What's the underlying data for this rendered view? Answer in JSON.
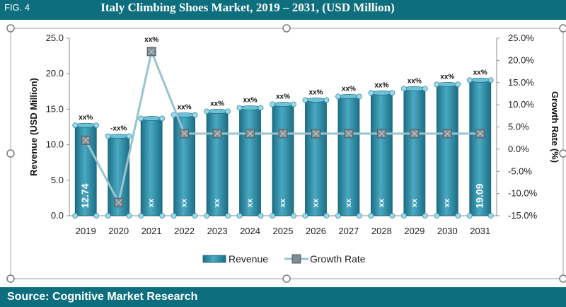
{
  "header": {
    "fig_label": "FIG. 4",
    "title": "Italy Climbing Shoes Market, 2019 – 2031, (USD Million)"
  },
  "footer": {
    "source": "Source: Cognitive Market Research"
  },
  "colors": {
    "header_bg": "#0d6e7e",
    "bar": "#2e8fa8",
    "growth_line": "#9ac3d1",
    "handle": "#7a7a7a"
  },
  "chart_data": {
    "type": "bar",
    "title": "Italy Climbing Shoes Market, 2019 – 2031, (USD Million)",
    "categories": [
      "2019",
      "2020",
      "2021",
      "2022",
      "2023",
      "2024",
      "2025",
      "2026",
      "2027",
      "2028",
      "2029",
      "2030",
      "2031"
    ],
    "ylabel": "Revenue (USD Million)",
    "ylim": [
      0,
      25
    ],
    "yticks": [
      "0.0",
      "5.0",
      "10.0",
      "15.0",
      "20.0",
      "25.0"
    ],
    "y2label": "Growth Rate (%)",
    "y2lim": [
      -15,
      25
    ],
    "y2ticks": [
      "-15.0%",
      "-10.0%",
      "-5.0%",
      "0.0%",
      "5.0%",
      "10.0%",
      "15.0%",
      "20.0%",
      "25.0%"
    ],
    "series": [
      {
        "name": "Revenue",
        "type": "bar",
        "values": [
          12.74,
          11.2,
          13.7,
          14.2,
          14.7,
          15.2,
          15.7,
          16.3,
          16.8,
          17.3,
          17.9,
          18.5,
          19.09
        ],
        "labels": [
          "12.74",
          "xx",
          "xx",
          "xx",
          "xx",
          "xx",
          "xx",
          "xx",
          "xx",
          "xx",
          "xx",
          "xx",
          "19.09"
        ]
      },
      {
        "name": "Growth Rate",
        "type": "line",
        "axis": "secondary",
        "values": [
          2.0,
          -12.0,
          22.0,
          3.5,
          3.5,
          3.5,
          3.5,
          3.5,
          3.5,
          3.5,
          3.5,
          3.5,
          3.5
        ],
        "labels": [
          "xx%",
          "-xx%",
          "xx%",
          "xx%",
          "xx%",
          "xx%",
          "xx%",
          "xx%",
          "xx%",
          "xx%",
          "xx%",
          "xx%",
          "xx%"
        ]
      }
    ],
    "legend": [
      "Revenue",
      "Growth Rate"
    ],
    "legend_position": "bottom",
    "grid": false
  }
}
